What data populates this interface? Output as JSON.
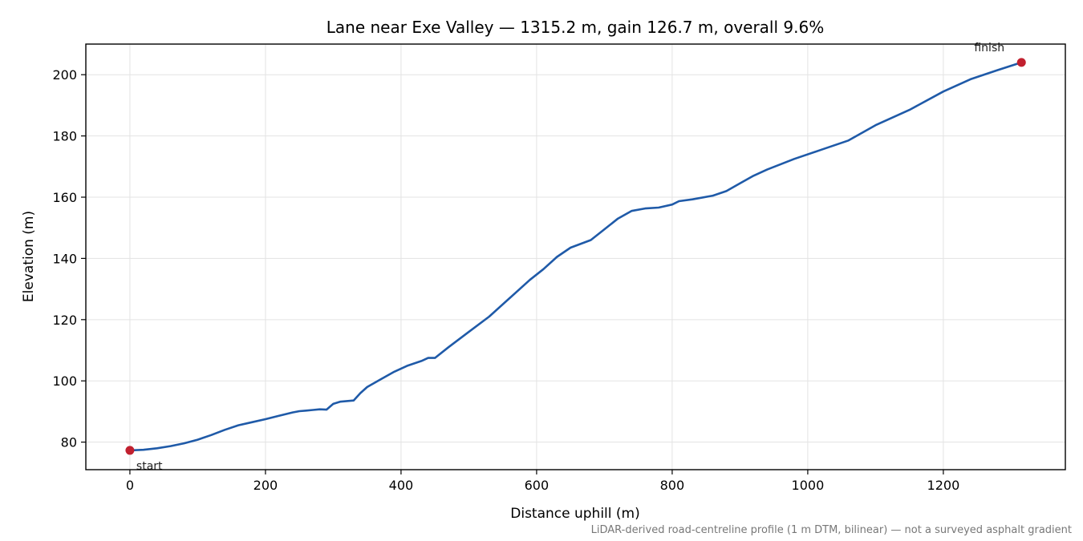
{
  "chart_data": {
    "type": "line",
    "title": "Lane near Exe Valley — 1315.2 m, gain 126.7 m, overall 9.6%",
    "xlabel": "Distance uphill (m)",
    "ylabel": "Elevation (m)",
    "xlim": [
      -65,
      1380
    ],
    "ylim": [
      71,
      210
    ],
    "xticks": [
      0,
      200,
      400,
      600,
      800,
      1000,
      1200
    ],
    "yticks": [
      80,
      100,
      120,
      140,
      160,
      180,
      200
    ],
    "grid": true,
    "footnote": "LiDAR-derived road-centreline profile (1 m DTM, bilinear) — not a surveyed asphalt gradient",
    "colors": {
      "line": "#1f5aa8",
      "markers": "#c1202f"
    },
    "series": [
      {
        "x": [
          0,
          20,
          40,
          60,
          80,
          100,
          120,
          140,
          160,
          180,
          200,
          220,
          240,
          250,
          260,
          270,
          280,
          290,
          300,
          310,
          330,
          340,
          350,
          370,
          390,
          410,
          430,
          440,
          450,
          470,
          500,
          530,
          560,
          590,
          610,
          630,
          650,
          680,
          700,
          720,
          740,
          760,
          780,
          800,
          810,
          830,
          860,
          880,
          900,
          920,
          940,
          980,
          1020,
          1060,
          1100,
          1150,
          1200,
          1240,
          1280,
          1315.2
        ],
        "y": [
          77.3,
          77.5,
          78.0,
          78.7,
          79.6,
          80.8,
          82.3,
          84.0,
          85.5,
          86.5,
          87.5,
          88.6,
          89.7,
          90.1,
          90.3,
          90.5,
          90.7,
          90.6,
          92.5,
          93.2,
          93.6,
          96.0,
          98.0,
          100.5,
          103.0,
          105.0,
          106.5,
          107.5,
          107.5,
          111.0,
          116.0,
          121.0,
          127.0,
          133.0,
          136.5,
          140.5,
          143.5,
          146.0,
          149.5,
          153.0,
          155.5,
          156.3,
          156.6,
          157.6,
          158.7,
          159.3,
          160.5,
          162.0,
          164.5,
          167.0,
          169.0,
          172.5,
          175.5,
          178.5,
          183.5,
          188.5,
          194.5,
          198.5,
          201.5,
          204.0
        ]
      }
    ],
    "points": [
      {
        "label": "start",
        "x": 0,
        "y": 77.3
      },
      {
        "label": "finish",
        "x": 1315.2,
        "y": 204.0
      }
    ]
  }
}
